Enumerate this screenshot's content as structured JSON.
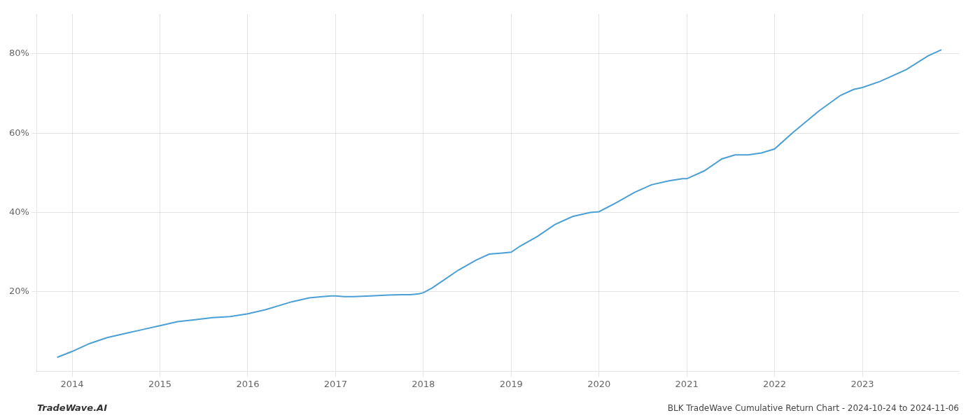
{
  "chart_data": {
    "type": "line",
    "title": "BLK TradeWave Cumulative Return Chart - 2024-10-24 to 2024-11-06",
    "annotations": [
      "TradeWave.AI"
    ],
    "x": [
      2013.83,
      2014.0,
      2014.1,
      2014.2,
      2014.4,
      2014.6,
      2014.8,
      2015.0,
      2015.2,
      2015.4,
      2015.6,
      2015.8,
      2016.0,
      2016.2,
      2016.5,
      2016.7,
      2016.85,
      2016.95,
      2017.0,
      2017.1,
      2017.2,
      2017.4,
      2017.6,
      2017.75,
      2017.85,
      2017.95,
      2018.0,
      2018.1,
      2018.2,
      2018.4,
      2018.6,
      2018.75,
      2018.9,
      2019.0,
      2019.1,
      2019.3,
      2019.5,
      2019.7,
      2019.9,
      2020.0,
      2020.2,
      2020.4,
      2020.6,
      2020.8,
      2020.95,
      2021.0,
      2021.2,
      2021.4,
      2021.55,
      2021.7,
      2021.85,
      2022.0,
      2022.2,
      2022.5,
      2022.75,
      2022.9,
      2023.0,
      2023.2,
      2023.5,
      2023.75,
      2023.9
    ],
    "values": [
      3.5,
      5.0,
      6.0,
      7.0,
      8.5,
      9.5,
      10.5,
      11.5,
      12.5,
      13.0,
      13.5,
      13.8,
      14.5,
      15.5,
      17.5,
      18.5,
      18.8,
      19.0,
      19.0,
      18.8,
      18.8,
      19.0,
      19.2,
      19.3,
      19.3,
      19.5,
      19.8,
      21.0,
      22.5,
      25.5,
      28.0,
      29.5,
      29.8,
      30.0,
      31.5,
      34.0,
      37.0,
      39.0,
      40.0,
      40.2,
      42.5,
      45.0,
      47.0,
      48.0,
      48.5,
      48.5,
      50.5,
      53.5,
      54.5,
      54.5,
      55.0,
      56.0,
      60.0,
      65.5,
      69.5,
      71.0,
      71.5,
      73.0,
      76.0,
      79.5,
      81.0
    ],
    "color": "#4a9fd4",
    "xlim": [
      2013.6,
      2024.1
    ],
    "xticks": [
      2014,
      2015,
      2016,
      2017,
      2018,
      2019,
      2020,
      2021,
      2022,
      2023
    ],
    "ylim": [
      0,
      90
    ],
    "yticks": [
      {
        "value": 20,
        "label": "20%"
      },
      {
        "value": 40,
        "label": "40%"
      },
      {
        "value": 60,
        "label": "60%"
      },
      {
        "value": 80,
        "label": "80%"
      }
    ],
    "grid": true
  }
}
